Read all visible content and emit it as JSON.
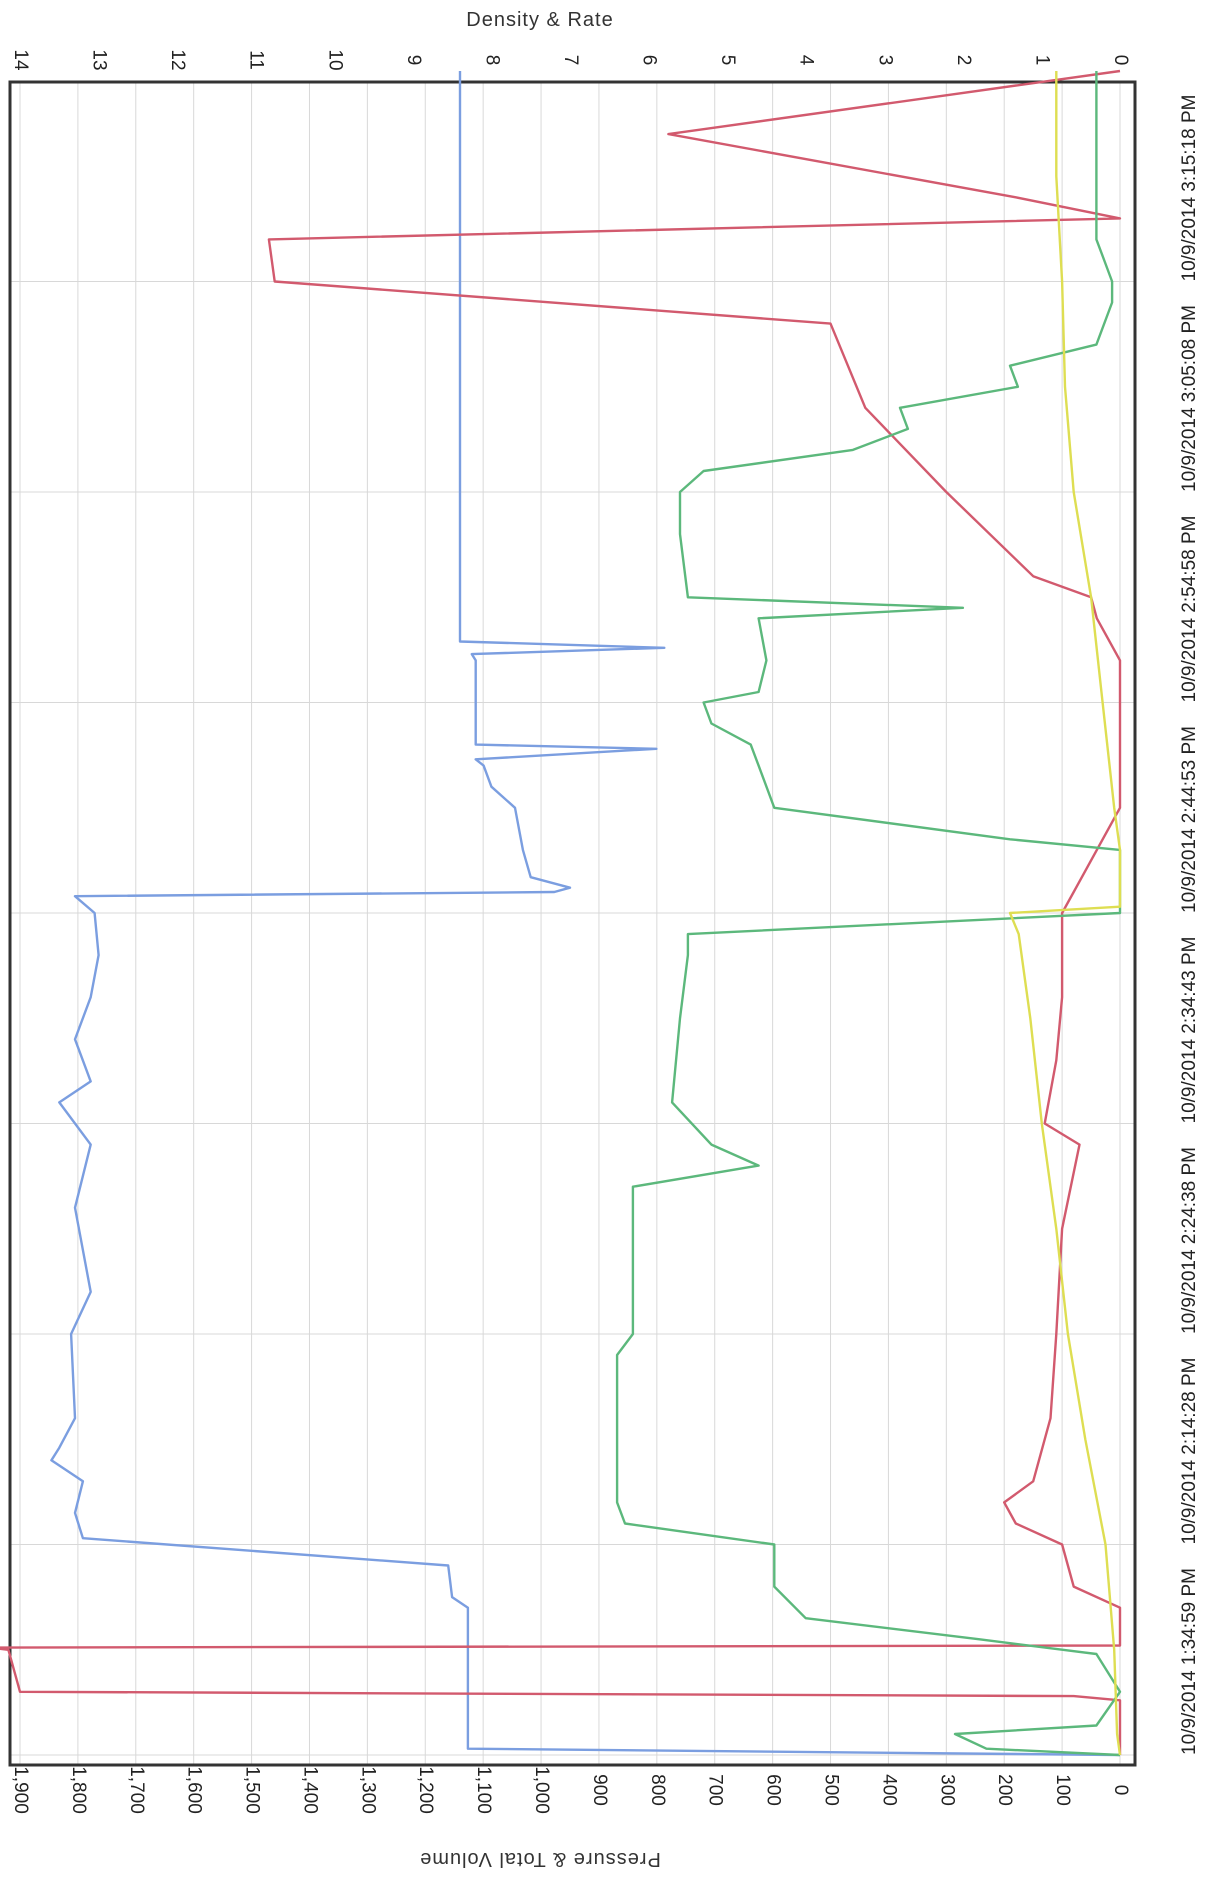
{
  "chart_data": {
    "type": "line",
    "orientation": "rotated-90",
    "top_axis_label": "Density & Rate",
    "bottom_axis_label": "Pressure & Total Volume",
    "left_axis": {
      "range": [
        0,
        1900
      ],
      "ticks": [
        "0",
        "100",
        "200",
        "300",
        "400",
        "500",
        "600",
        "700",
        "800",
        "900",
        "1,000",
        "1,100",
        "1,200",
        "1,300",
        "1,400",
        "1,500",
        "1,600",
        "1,700",
        "1,800",
        "1,900"
      ]
    },
    "right_axis": {
      "range": [
        0,
        14
      ],
      "ticks": [
        "0",
        "1",
        "2",
        "3",
        "4",
        "5",
        "6",
        "7",
        "8",
        "9",
        "10",
        "11",
        "12",
        "13",
        "14"
      ]
    },
    "time_axis": {
      "range_minutes": [
        0,
        100
      ],
      "ticks": [
        {
          "t": 0,
          "label": "10/9/2014 1:34:59 PM"
        },
        {
          "t": 10,
          "label": "10/9/2014 2:14:28 PM"
        },
        {
          "t": 20,
          "label": "10/9/2014 2:24:38 PM"
        },
        {
          "t": 30,
          "label": "10/9/2014 2:34:43 PM"
        },
        {
          "t": 40,
          "label": "10/9/2014 2:44:53 PM"
        },
        {
          "t": 50,
          "label": "10/9/2014 2:54:58 PM"
        },
        {
          "t": 60,
          "label": "10/9/2014 3:05:08 PM"
        },
        {
          "t": 70,
          "label": "10/9/2014 3:15:18 PM"
        }
      ]
    },
    "grid": true,
    "series": [
      {
        "axis": "right",
        "color": "#7b9ee0",
        "points": [
          [
            0,
            0
          ],
          [
            0.3,
            8.3
          ],
          [
            7,
            8.3
          ],
          [
            7.5,
            8.5
          ],
          [
            9,
            8.55
          ],
          [
            10.3,
            13.2
          ],
          [
            11.5,
            13.3
          ],
          [
            13,
            13.2
          ],
          [
            14,
            13.6
          ],
          [
            14.6,
            13.5
          ],
          [
            16,
            13.3
          ],
          [
            20,
            13.35
          ],
          [
            22,
            13.1
          ],
          [
            26,
            13.3
          ],
          [
            29,
            13.1
          ],
          [
            31,
            13.5
          ],
          [
            32,
            13.1
          ],
          [
            34,
            13.3
          ],
          [
            36,
            13.1
          ],
          [
            38,
            13.0
          ],
          [
            40,
            13.05
          ],
          [
            40.8,
            13.3
          ],
          [
            41,
            7.2
          ],
          [
            41.2,
            7.0
          ],
          [
            41.7,
            7.5
          ],
          [
            43,
            7.6
          ],
          [
            45,
            7.7
          ],
          [
            46,
            8.0
          ],
          [
            47,
            8.1
          ],
          [
            47.3,
            8.2
          ],
          [
            47.8,
            5.9
          ],
          [
            48,
            8.2
          ],
          [
            52,
            8.2
          ],
          [
            52.3,
            8.25
          ],
          [
            52.6,
            5.8
          ],
          [
            52.9,
            8.4
          ],
          [
            72,
            8.4
          ],
          [
            80,
            8.4
          ]
        ]
      },
      {
        "axis": "left",
        "color": "#d25a6e",
        "points": [
          [
            0,
            0
          ],
          [
            2.6,
            0
          ],
          [
            2.8,
            80
          ],
          [
            3,
            1900
          ],
          [
            5,
            1920
          ],
          [
            5.1,
            1950
          ],
          [
            5.2,
            0
          ],
          [
            7,
            0
          ],
          [
            8,
            80
          ],
          [
            9,
            90
          ],
          [
            10,
            100
          ],
          [
            11,
            180
          ],
          [
            12,
            200
          ],
          [
            13,
            150
          ],
          [
            16,
            120
          ],
          [
            20,
            110
          ],
          [
            25,
            100
          ],
          [
            29,
            70
          ],
          [
            30,
            130
          ],
          [
            33,
            110
          ],
          [
            36,
            100
          ],
          [
            40,
            100
          ],
          [
            41,
            80
          ],
          [
            45,
            0
          ],
          [
            48,
            0
          ],
          [
            52,
            0
          ],
          [
            54,
            40
          ],
          [
            55,
            50
          ],
          [
            56,
            150
          ],
          [
            60,
            300
          ],
          [
            64,
            440
          ],
          [
            66,
            470
          ],
          [
            68,
            500
          ],
          [
            70,
            1460
          ],
          [
            72,
            1470
          ],
          [
            73,
            0
          ],
          [
            74,
            180
          ],
          [
            77,
            780
          ],
          [
            80,
            0
          ]
        ]
      },
      {
        "axis": "right",
        "color": "#5cb87c",
        "points": [
          [
            0,
            0
          ],
          [
            0.3,
            1.7
          ],
          [
            1,
            2.1
          ],
          [
            1.4,
            0.3
          ],
          [
            3,
            0
          ],
          [
            4.8,
            0.3
          ],
          [
            5.5,
            1.8
          ],
          [
            6.5,
            4.0
          ],
          [
            8,
            4.4
          ],
          [
            10,
            4.4
          ],
          [
            11,
            6.3
          ],
          [
            12,
            6.4
          ],
          [
            19,
            6.4
          ],
          [
            20,
            6.2
          ],
          [
            27,
            6.2
          ],
          [
            28,
            4.6
          ],
          [
            29,
            5.2
          ],
          [
            31,
            5.7
          ],
          [
            35,
            5.6
          ],
          [
            38,
            5.5
          ],
          [
            39,
            5.5
          ],
          [
            40,
            0
          ],
          [
            43,
            0
          ],
          [
            43.5,
            1.4
          ],
          [
            45,
            4.4
          ],
          [
            47,
            4.6
          ],
          [
            48,
            4.7
          ],
          [
            49,
            5.2
          ],
          [
            50,
            5.3
          ],
          [
            50.5,
            4.6
          ],
          [
            52,
            4.5
          ],
          [
            54,
            4.6
          ],
          [
            54.5,
            2.0
          ],
          [
            55,
            5.5
          ],
          [
            58,
            5.6
          ],
          [
            60,
            5.6
          ],
          [
            61,
            5.3
          ],
          [
            62,
            3.4
          ],
          [
            63,
            2.7
          ],
          [
            64,
            2.8
          ],
          [
            65,
            1.3
          ],
          [
            66,
            1.4
          ],
          [
            67,
            0.3
          ],
          [
            69,
            0.1
          ],
          [
            70,
            0.1
          ],
          [
            71,
            0.2
          ],
          [
            72,
            0.3
          ],
          [
            80,
            0.3
          ]
        ]
      },
      {
        "axis": "left",
        "color": "#dede52",
        "points": [
          [
            0,
            0
          ],
          [
            1,
            5
          ],
          [
            5,
            10
          ],
          [
            10,
            25
          ],
          [
            15,
            60
          ],
          [
            20,
            90
          ],
          [
            25,
            110
          ],
          [
            30,
            135
          ],
          [
            35,
            155
          ],
          [
            39,
            175
          ],
          [
            40,
            190
          ],
          [
            40.3,
            0
          ],
          [
            43,
            0
          ],
          [
            45,
            10
          ],
          [
            50,
            30
          ],
          [
            55,
            50
          ],
          [
            60,
            80
          ],
          [
            65,
            95
          ],
          [
            70,
            100
          ],
          [
            75,
            110
          ],
          [
            80,
            110
          ]
        ]
      }
    ]
  }
}
